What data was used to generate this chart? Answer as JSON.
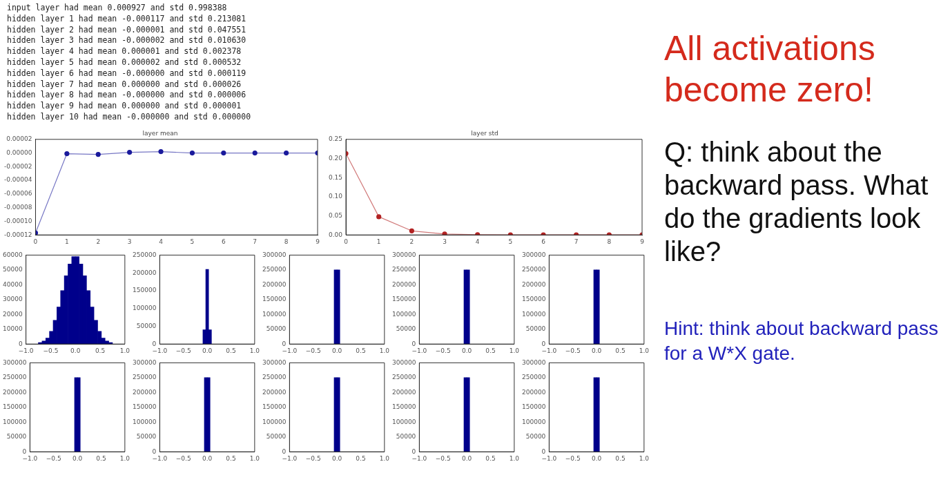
{
  "chart_data": [
    {
      "type": "other",
      "annotations": [
        "input layer had mean 0.000927 and std 0.998388",
        "hidden layer 1 had mean -0.000117 and std 0.213081",
        "hidden layer 2 had mean -0.000001 and std 0.047551",
        "hidden layer 3 had mean -0.000002 and std 0.010630",
        "hidden layer 4 had mean 0.000001 and std 0.002378",
        "hidden layer 5 had mean 0.000002 and std 0.000532",
        "hidden layer 6 had mean -0.000000 and std 0.000119",
        "hidden layer 7 had mean 0.000000 and std 0.000026",
        "hidden layer 8 had mean -0.000000 and std 0.000006",
        "hidden layer 9 had mean 0.000000 and std 0.000001",
        "hidden layer 10 had mean -0.000000 and std 0.000000"
      ]
    },
    {
      "type": "line",
      "title": "layer mean",
      "x": [
        0,
        1,
        2,
        3,
        4,
        5,
        6,
        7,
        8,
        9
      ],
      "marker": "circle",
      "xlim": [
        0,
        9
      ],
      "xticks": [
        0,
        1,
        2,
        3,
        4,
        5,
        6,
        7,
        8,
        9
      ],
      "ylim": [
        -0.00012,
        2e-05
      ],
      "yticks": [
        {
          "value": -0.00012,
          "label": "-0.00012"
        },
        {
          "value": -0.0001,
          "label": "-0.00010"
        },
        {
          "value": -8e-05,
          "label": "-0.00008"
        },
        {
          "value": -6e-05,
          "label": "-0.00006"
        },
        {
          "value": -4e-05,
          "label": "-0.00004"
        },
        {
          "value": -2e-05,
          "label": "-0.00002"
        },
        {
          "value": 0,
          "label": "0.00000"
        },
        {
          "value": 2e-05,
          "label": "0.00002"
        }
      ],
      "series": [
        {
          "color": "#1a1a9c",
          "values": [
            -0.000117,
            -1e-06,
            -2e-06,
            1e-06,
            2e-06,
            0,
            0,
            0,
            0,
            0
          ]
        }
      ]
    },
    {
      "type": "line",
      "title": "layer std",
      "x": [
        0,
        1,
        2,
        3,
        4,
        5,
        6,
        7,
        8,
        9
      ],
      "marker": "circle",
      "xlim": [
        0,
        9
      ],
      "xticks": [
        0,
        1,
        2,
        3,
        4,
        5,
        6,
        7,
        8,
        9
      ],
      "ylim": [
        0,
        0.25
      ],
      "yticks": [
        {
          "value": 0,
          "label": "0.00"
        },
        {
          "value": 0.05,
          "label": "0.05"
        },
        {
          "value": 0.1,
          "label": "0.10"
        },
        {
          "value": 0.15,
          "label": "0.15"
        },
        {
          "value": 0.2,
          "label": "0.20"
        },
        {
          "value": 0.25,
          "label": "0.25"
        }
      ],
      "series": [
        {
          "color": "#b22222",
          "values": [
            0.213081,
            0.047551,
            0.01063,
            0.002378,
            0.000532,
            0.000119,
            2.6e-05,
            6e-06,
            1e-06,
            0
          ]
        }
      ]
    },
    {
      "type": "histogram",
      "color": "#00008b",
      "bins": [
        -0.75,
        -0.675,
        -0.6,
        -0.525,
        -0.45,
        -0.375,
        -0.3,
        -0.225,
        -0.15,
        -0.075,
        0,
        0.075,
        0.15,
        0.225,
        0.3,
        0.375,
        0.45,
        0.525,
        0.6,
        0.675,
        0.75
      ],
      "values": [
        1000,
        2000,
        4000,
        8500,
        16000,
        25000,
        36000,
        46000,
        54000,
        59000,
        59000,
        54000,
        46000,
        36000,
        25000,
        16000,
        8500,
        4000,
        2000,
        1000
      ],
      "xlim": [
        -1,
        1
      ],
      "xticks": [
        {
          "value": -1,
          "label": "−1.0"
        },
        {
          "value": -0.5,
          "label": "−0.5"
        },
        {
          "value": 0,
          "label": "0.0"
        },
        {
          "value": 0.5,
          "label": "0.5"
        },
        {
          "value": 1,
          "label": "1.0"
        }
      ],
      "ylim": [
        0,
        60000
      ],
      "yticks": [
        0,
        10000,
        20000,
        30000,
        40000,
        50000,
        60000
      ]
    },
    {
      "type": "histogram",
      "color": "#00008b",
      "bins": [
        -0.09,
        -0.03,
        0.03,
        0.09
      ],
      "values": [
        40000,
        210000,
        40000
      ],
      "xlim": [
        -1,
        1
      ],
      "xticks": [
        {
          "value": -1,
          "label": "−1.0"
        },
        {
          "value": -0.5,
          "label": "−0.5"
        },
        {
          "value": 0,
          "label": "0.0"
        },
        {
          "value": 0.5,
          "label": "0.5"
        },
        {
          "value": 1,
          "label": "1.0"
        }
      ],
      "ylim": [
        0,
        250000
      ],
      "yticks": [
        0,
        50000,
        100000,
        150000,
        200000,
        250000
      ]
    },
    {
      "type": "histogram",
      "color": "#00008b",
      "bins": [
        -0.06,
        0,
        0.06
      ],
      "values": [
        250000,
        250000
      ],
      "xlim": [
        -1,
        1
      ],
      "xticks": [
        {
          "value": -1,
          "label": "−1.0"
        },
        {
          "value": -0.5,
          "label": "−0.5"
        },
        {
          "value": 0,
          "label": "0.0"
        },
        {
          "value": 0.5,
          "label": "0.5"
        },
        {
          "value": 1,
          "label": "1.0"
        }
      ],
      "ylim": [
        0,
        300000
      ],
      "yticks": [
        0,
        50000,
        100000,
        150000,
        200000,
        250000,
        300000
      ]
    },
    {
      "type": "histogram",
      "color": "#00008b",
      "bins": [
        -0.06,
        0,
        0.06
      ],
      "values": [
        250000,
        250000
      ],
      "xlim": [
        -1,
        1
      ],
      "xticks": [
        {
          "value": -1,
          "label": "−1.0"
        },
        {
          "value": -0.5,
          "label": "−0.5"
        },
        {
          "value": 0,
          "label": "0.0"
        },
        {
          "value": 0.5,
          "label": "0.5"
        },
        {
          "value": 1,
          "label": "1.0"
        }
      ],
      "ylim": [
        0,
        300000
      ],
      "yticks": [
        0,
        50000,
        100000,
        150000,
        200000,
        250000,
        300000
      ]
    },
    {
      "type": "histogram",
      "color": "#00008b",
      "bins": [
        -0.06,
        0,
        0.06
      ],
      "values": [
        250000,
        250000
      ],
      "xlim": [
        -1,
        1
      ],
      "xticks": [
        {
          "value": -1,
          "label": "−1.0"
        },
        {
          "value": -0.5,
          "label": "−0.5"
        },
        {
          "value": 0,
          "label": "0.0"
        },
        {
          "value": 0.5,
          "label": "0.5"
        },
        {
          "value": 1,
          "label": "1.0"
        }
      ],
      "ylim": [
        0,
        300000
      ],
      "yticks": [
        0,
        50000,
        100000,
        150000,
        200000,
        250000,
        300000
      ]
    },
    {
      "type": "histogram",
      "color": "#00008b",
      "bins": [
        -0.06,
        0,
        0.06
      ],
      "values": [
        250000,
        250000
      ],
      "xlim": [
        -1,
        1
      ],
      "xticks": [
        {
          "value": -1,
          "label": "−1.0"
        },
        {
          "value": -0.5,
          "label": "−0.5"
        },
        {
          "value": 0,
          "label": "0.0"
        },
        {
          "value": 0.5,
          "label": "0.5"
        },
        {
          "value": 1,
          "label": "1.0"
        }
      ],
      "ylim": [
        0,
        300000
      ],
      "yticks": [
        0,
        50000,
        100000,
        150000,
        200000,
        250000,
        300000
      ]
    },
    {
      "type": "histogram",
      "color": "#00008b",
      "bins": [
        -0.06,
        0,
        0.06
      ],
      "values": [
        250000,
        250000
      ],
      "xlim": [
        -1,
        1
      ],
      "xticks": [
        {
          "value": -1,
          "label": "−1.0"
        },
        {
          "value": -0.5,
          "label": "−0.5"
        },
        {
          "value": 0,
          "label": "0.0"
        },
        {
          "value": 0.5,
          "label": "0.5"
        },
        {
          "value": 1,
          "label": "1.0"
        }
      ],
      "ylim": [
        0,
        300000
      ],
      "yticks": [
        0,
        50000,
        100000,
        150000,
        200000,
        250000,
        300000
      ]
    },
    {
      "type": "histogram",
      "color": "#00008b",
      "bins": [
        -0.06,
        0,
        0.06
      ],
      "values": [
        250000,
        250000
      ],
      "xlim": [
        -1,
        1
      ],
      "xticks": [
        {
          "value": -1,
          "label": "−1.0"
        },
        {
          "value": -0.5,
          "label": "−0.5"
        },
        {
          "value": 0,
          "label": "0.0"
        },
        {
          "value": 0.5,
          "label": "0.5"
        },
        {
          "value": 1,
          "label": "1.0"
        }
      ],
      "ylim": [
        0,
        300000
      ],
      "yticks": [
        0,
        50000,
        100000,
        150000,
        200000,
        250000,
        300000
      ]
    },
    {
      "type": "histogram",
      "color": "#00008b",
      "bins": [
        -0.06,
        0,
        0.06
      ],
      "values": [
        250000,
        250000
      ],
      "xlim": [
        -1,
        1
      ],
      "xticks": [
        {
          "value": -1,
          "label": "−1.0"
        },
        {
          "value": -0.5,
          "label": "−0.5"
        },
        {
          "value": 0,
          "label": "0.0"
        },
        {
          "value": 0.5,
          "label": "0.5"
        },
        {
          "value": 1,
          "label": "1.0"
        }
      ],
      "ylim": [
        0,
        300000
      ],
      "yticks": [
        0,
        50000,
        100000,
        150000,
        200000,
        250000,
        300000
      ]
    },
    {
      "type": "histogram",
      "color": "#00008b",
      "bins": [
        -0.06,
        0,
        0.06
      ],
      "values": [
        250000,
        250000
      ],
      "xlim": [
        -1,
        1
      ],
      "xticks": [
        {
          "value": -1,
          "label": "−1.0"
        },
        {
          "value": -0.5,
          "label": "−0.5"
        },
        {
          "value": 0,
          "label": "0.0"
        },
        {
          "value": 0.5,
          "label": "0.5"
        },
        {
          "value": 1,
          "label": "1.0"
        }
      ],
      "ylim": [
        0,
        300000
      ],
      "yticks": [
        0,
        50000,
        100000,
        150000,
        200000,
        250000,
        300000
      ]
    },
    {
      "type": "other",
      "title": "All activations become zero!",
      "annotations": [
        "Q: think about the backward pass. What do the gradients look like?",
        "Hint: think about backward pass for a W*X gate."
      ]
    }
  ]
}
